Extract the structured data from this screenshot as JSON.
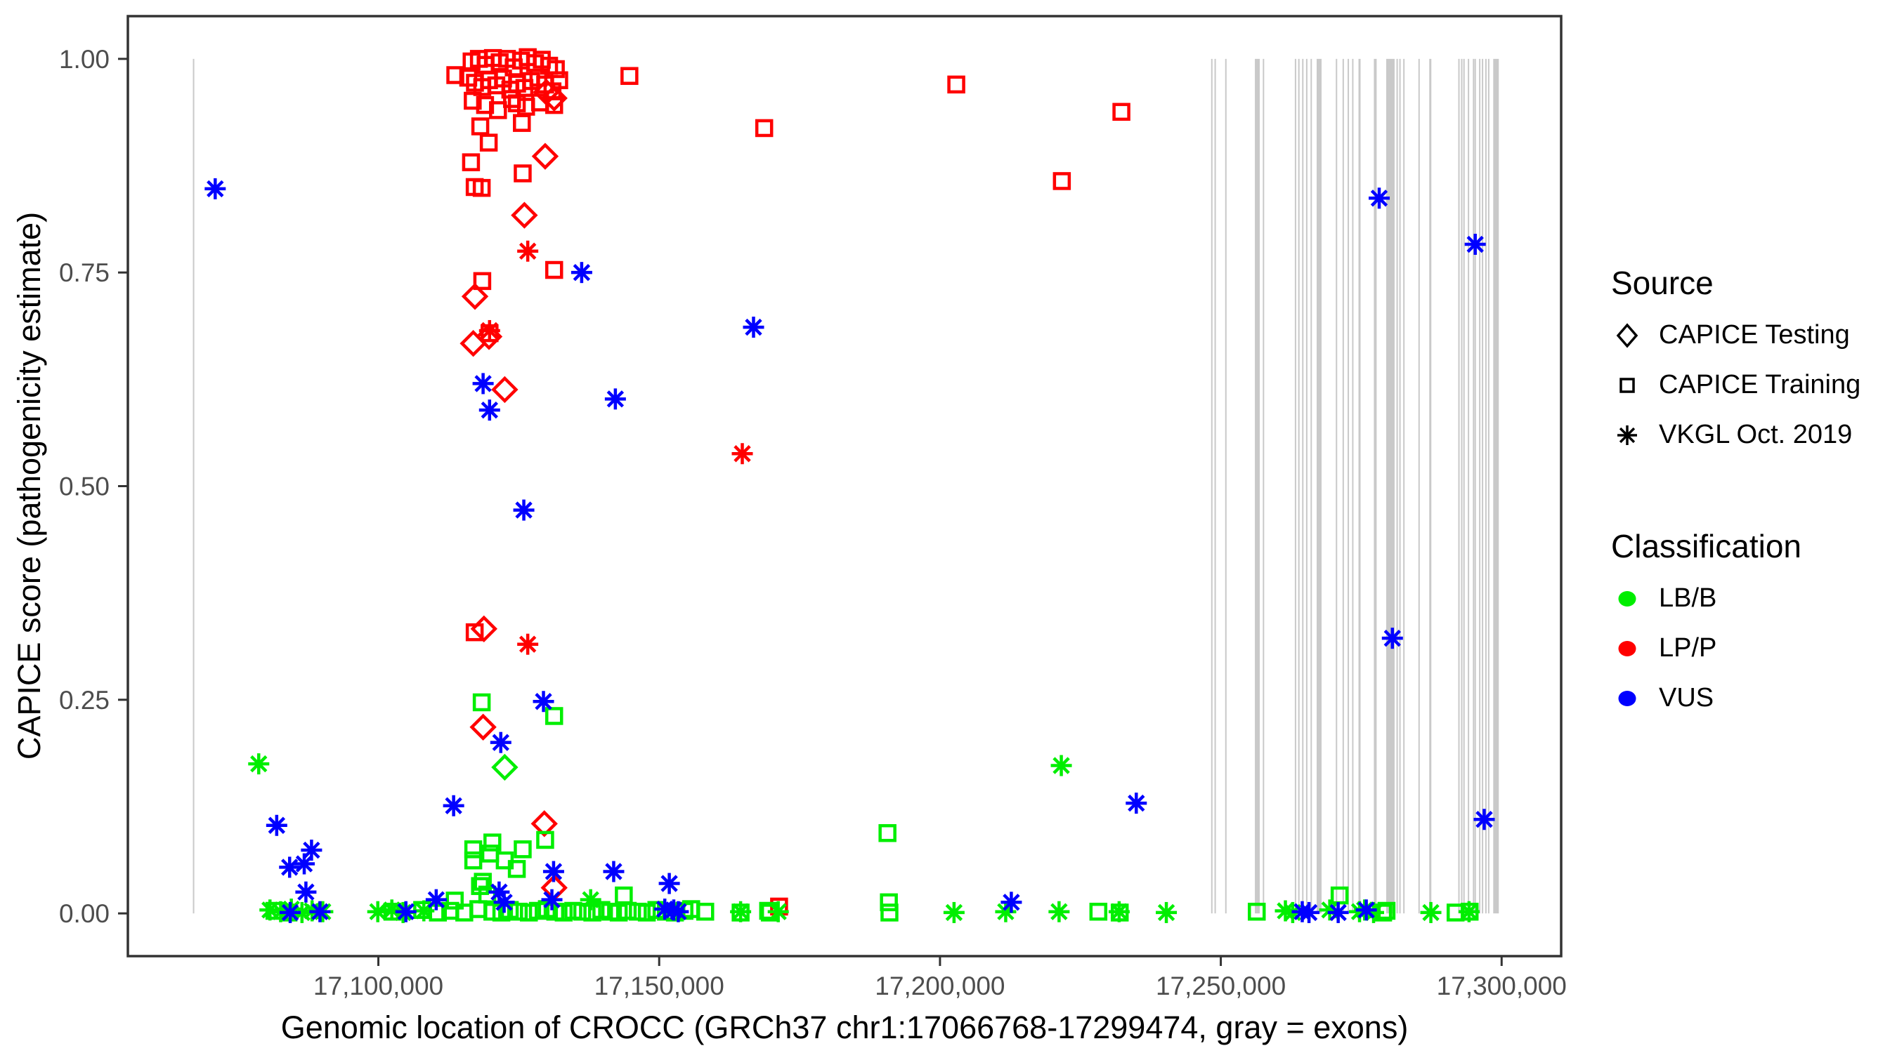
{
  "figure": {
    "background": "#ffffff",
    "panel_border_color": "#333333",
    "tick_label_color": "#4d4d4d",
    "axis_title_color": "#000000"
  },
  "chart_data": {
    "type": "scatter",
    "title": "",
    "xlabel": "Genomic location of CROCC (GRCh37 chr1:17066768-17299474, gray = exons)",
    "ylabel": "CAPICE score (pathogenicity estimate)",
    "xlim": [
      17055400,
      17310600
    ],
    "ylim": [
      -0.05,
      1.05
    ],
    "grid": false,
    "x_ticks": [
      {
        "value": 17100000,
        "label": "17,100,000"
      },
      {
        "value": 17150000,
        "label": "17,150,000"
      },
      {
        "value": 17200000,
        "label": "17,200,000"
      },
      {
        "value": 17250000,
        "label": "17,250,000"
      },
      {
        "value": 17300000,
        "label": "17,300,000"
      }
    ],
    "y_ticks": [
      {
        "value": 0.0,
        "label": "0.00"
      },
      {
        "value": 0.25,
        "label": "0.25"
      },
      {
        "value": 0.5,
        "label": "0.50"
      },
      {
        "value": 0.75,
        "label": "0.75"
      },
      {
        "value": 1.0,
        "label": "1.00"
      }
    ],
    "legend": {
      "position": "right",
      "source": {
        "title": "Source",
        "items": [
          {
            "label": "CAPICE Testing",
            "shape": "diamond",
            "icon": "diamond-icon"
          },
          {
            "label": "CAPICE Training",
            "shape": "square",
            "icon": "square-icon"
          },
          {
            "label": "VKGL Oct. 2019",
            "shape": "asterisk",
            "icon": "asterisk-icon"
          }
        ]
      },
      "classification": {
        "title": "Classification",
        "items": [
          {
            "label": "LB/B",
            "color": "#00ee00"
          },
          {
            "label": "LP/P",
            "color": "#ff0000"
          },
          {
            "label": "VUS",
            "color": "#0000ff"
          }
        ]
      }
    },
    "colors": {
      "LB/B": "#00ee00",
      "LP/P": "#ff0000",
      "VUS": "#0000ff"
    },
    "exon_color": "#c9c9c9",
    "exon_note": "gray vertical segments = exons, drawn from score 0 to 1; [position, pixel_width]",
    "exons": [
      [
        17067100,
        2
      ],
      [
        17248400,
        2
      ],
      [
        17249000,
        2
      ],
      [
        17250900,
        2
      ],
      [
        17256500,
        7
      ],
      [
        17257600,
        2
      ],
      [
        17263300,
        2
      ],
      [
        17263900,
        2
      ],
      [
        17264600,
        2
      ],
      [
        17265300,
        2
      ],
      [
        17266100,
        2
      ],
      [
        17267500,
        7
      ],
      [
        17270600,
        2
      ],
      [
        17271800,
        2
      ],
      [
        17272700,
        2
      ],
      [
        17273500,
        2
      ],
      [
        17274700,
        3
      ],
      [
        17277500,
        4
      ],
      [
        17280200,
        12
      ],
      [
        17281400,
        2
      ],
      [
        17281900,
        2
      ],
      [
        17282600,
        2
      ],
      [
        17285300,
        2
      ],
      [
        17287300,
        3
      ],
      [
        17292400,
        2
      ],
      [
        17292900,
        2
      ],
      [
        17293300,
        2
      ],
      [
        17294100,
        2
      ],
      [
        17295000,
        2
      ],
      [
        17295300,
        2
      ],
      [
        17296100,
        2
      ],
      [
        17296600,
        2
      ],
      [
        17297200,
        2
      ],
      [
        17297700,
        2
      ],
      [
        17299000,
        8
      ]
    ],
    "series": [
      {
        "source": "CAPICE Testing",
        "classification": "LP/P",
        "shape": "diamond",
        "color": "#ff0000",
        "points": [
          [
            17129900,
            0.961
          ],
          [
            17131300,
            0.954
          ],
          [
            17129700,
            0.886
          ],
          [
            17126000,
            0.817
          ],
          [
            17117200,
            0.722
          ],
          [
            17119700,
            0.675
          ],
          [
            17116900,
            0.667
          ],
          [
            17122500,
            0.613
          ],
          [
            17118800,
            0.333
          ],
          [
            17118650,
            0.218
          ],
          [
            17129550,
            0.105
          ],
          [
            17131300,
            0.03
          ]
        ]
      },
      {
        "source": "CAPICE Testing",
        "classification": "LB/B",
        "shape": "diamond",
        "color": "#00ee00",
        "points": [
          [
            17122500,
            0.171
          ]
        ]
      },
      {
        "source": "CAPICE Training",
        "classification": "LP/P",
        "shape": "square",
        "color": "#ff0000",
        "points": [
          [
            17113700,
            0.981
          ],
          [
            17116600,
            0.997
          ],
          [
            17117900,
            1.0
          ],
          [
            17119100,
            0.993
          ],
          [
            17120400,
            1.001
          ],
          [
            17121600,
            0.996
          ],
          [
            17122900,
            1.0
          ],
          [
            17124100,
            0.99
          ],
          [
            17125400,
            0.998
          ],
          [
            17126600,
            1.002
          ],
          [
            17127900,
            0.995
          ],
          [
            17129100,
            0.999
          ],
          [
            17130400,
            0.992
          ],
          [
            17131600,
            0.988
          ],
          [
            17116000,
            0.978
          ],
          [
            17117200,
            0.972
          ],
          [
            17118500,
            0.967
          ],
          [
            17119700,
            0.975
          ],
          [
            17121000,
            0.969
          ],
          [
            17122200,
            0.977
          ],
          [
            17123500,
            0.964
          ],
          [
            17124700,
            0.971
          ],
          [
            17126000,
            0.966
          ],
          [
            17127200,
            0.974
          ],
          [
            17128500,
            0.978
          ],
          [
            17129700,
            0.97
          ],
          [
            17131000,
            0.962
          ],
          [
            17132200,
            0.975
          ],
          [
            17116800,
            0.951
          ],
          [
            17119000,
            0.946
          ],
          [
            17121300,
            0.94
          ],
          [
            17123800,
            0.953
          ],
          [
            17126300,
            0.944
          ],
          [
            17128800,
            0.949
          ],
          [
            17124650,
            0.948
          ],
          [
            17131300,
            0.946
          ],
          [
            17144700,
            0.98
          ],
          [
            17118150,
            0.921
          ],
          [
            17125550,
            0.925
          ],
          [
            17119650,
            0.902
          ],
          [
            17116500,
            0.879
          ],
          [
            17125700,
            0.866
          ],
          [
            17117150,
            0.85
          ],
          [
            17118400,
            0.849
          ],
          [
            17202900,
            0.97
          ],
          [
            17232300,
            0.938
          ],
          [
            17168700,
            0.919
          ],
          [
            17221700,
            0.857
          ],
          [
            17131300,
            0.753
          ],
          [
            17118500,
            0.74
          ],
          [
            17119800,
            0.679
          ],
          [
            17117150,
            0.329
          ],
          [
            17171350,
            0.008
          ]
        ]
      },
      {
        "source": "CAPICE Training",
        "classification": "LB/B",
        "shape": "square",
        "color": "#00ee00",
        "points": [
          [
            17118400,
            0.247
          ],
          [
            17131300,
            0.231
          ],
          [
            17190650,
            0.094
          ],
          [
            17116900,
            0.075
          ],
          [
            17116900,
            0.062
          ],
          [
            17120300,
            0.083
          ],
          [
            17119900,
            0.07
          ],
          [
            17122500,
            0.062
          ],
          [
            17125700,
            0.075
          ],
          [
            17129700,
            0.086
          ],
          [
            17124650,
            0.052
          ],
          [
            17118600,
            0.037
          ],
          [
            17118100,
            0.032
          ],
          [
            17119400,
            0.022
          ],
          [
            17143700,
            0.021
          ],
          [
            17271150,
            0.021
          ],
          [
            17113600,
            0.015
          ],
          [
            17190900,
            0.013
          ],
          [
            17081500,
            0.003
          ],
          [
            17084000,
            0.001
          ],
          [
            17102500,
            0.002
          ],
          [
            17107800,
            0.004
          ],
          [
            17110600,
            0.001
          ],
          [
            17112800,
            0.003
          ],
          [
            17115300,
            0.001
          ],
          [
            17117800,
            0.005
          ],
          [
            17120300,
            0.002
          ],
          [
            17121900,
            0.001
          ],
          [
            17123400,
            0.004
          ],
          [
            17125000,
            0.002
          ],
          [
            17126800,
            0.001
          ],
          [
            17128400,
            0.003
          ],
          [
            17130000,
            0.005
          ],
          [
            17131500,
            0.002
          ],
          [
            17133000,
            0.001
          ],
          [
            17134700,
            0.003
          ],
          [
            17136300,
            0.002
          ],
          [
            17138100,
            0.001
          ],
          [
            17139700,
            0.004
          ],
          [
            17141300,
            0.002
          ],
          [
            17142800,
            0.001
          ],
          [
            17144400,
            0.003
          ],
          [
            17146200,
            0.002
          ],
          [
            17147800,
            0.001
          ],
          [
            17149500,
            0.004
          ],
          [
            17151200,
            0.002
          ],
          [
            17152800,
            0.001
          ],
          [
            17154500,
            0.003
          ],
          [
            17155700,
            0.005
          ],
          [
            17158200,
            0.002
          ],
          [
            17164500,
            0.001
          ],
          [
            17169400,
            0.003
          ],
          [
            17169700,
            0.001
          ],
          [
            17191000,
            0.001
          ],
          [
            17228200,
            0.002
          ],
          [
            17232000,
            0.001
          ],
          [
            17256400,
            0.002
          ],
          [
            17278900,
            0.001
          ],
          [
            17279500,
            0.003
          ],
          [
            17291800,
            0.001
          ],
          [
            17294300,
            0.002
          ]
        ]
      },
      {
        "source": "VKGL Oct. 2019",
        "classification": "LP/P",
        "shape": "asterisk",
        "color": "#ff0000",
        "points": [
          [
            17126600,
            0.775
          ],
          [
            17119800,
            0.682
          ],
          [
            17126600,
            0.315
          ],
          [
            17164800,
            0.538
          ]
        ]
      },
      {
        "source": "VKGL Oct. 2019",
        "classification": "LB/B",
        "shape": "asterisk",
        "color": "#00ee00",
        "points": [
          [
            17078700,
            0.175
          ],
          [
            17221600,
            0.173
          ],
          [
            17080700,
            0.004
          ],
          [
            17082600,
            0.002
          ],
          [
            17084500,
            0.005
          ],
          [
            17086400,
            0.001
          ],
          [
            17088200,
            0.003
          ],
          [
            17090100,
            0.002
          ],
          [
            17099900,
            0.002
          ],
          [
            17102400,
            0.004
          ],
          [
            17104400,
            0.001
          ],
          [
            17108100,
            0.003
          ],
          [
            17137800,
            0.016
          ],
          [
            17164500,
            0.002
          ],
          [
            17171200,
            0.002
          ],
          [
            17202500,
            0.001
          ],
          [
            17211700,
            0.002
          ],
          [
            17221200,
            0.002
          ],
          [
            17231900,
            0.002
          ],
          [
            17240300,
            0.001
          ],
          [
            17261500,
            0.003
          ],
          [
            17262800,
            0.001
          ],
          [
            17269400,
            0.004
          ],
          [
            17274700,
            0.002
          ],
          [
            17275600,
            0.004
          ],
          [
            17277200,
            0.001
          ],
          [
            17287400,
            0.001
          ],
          [
            17294200,
            0.002
          ]
        ]
      },
      {
        "source": "VKGL Oct. 2019",
        "classification": "VUS",
        "shape": "asterisk",
        "color": "#0000ff",
        "points": [
          [
            17070950,
            0.848
          ],
          [
            17278200,
            0.837
          ],
          [
            17295300,
            0.783
          ],
          [
            17136200,
            0.75
          ],
          [
            17166800,
            0.686
          ],
          [
            17142200,
            0.602
          ],
          [
            17118650,
            0.62
          ],
          [
            17119800,
            0.589
          ],
          [
            17125900,
            0.472
          ],
          [
            17280550,
            0.322
          ],
          [
            17296900,
            0.11
          ],
          [
            17129400,
            0.248
          ],
          [
            17121800,
            0.2
          ],
          [
            17113400,
            0.126
          ],
          [
            17234950,
            0.129
          ],
          [
            17081900,
            0.103
          ],
          [
            17088100,
            0.074
          ],
          [
            17086800,
            0.058
          ],
          [
            17084200,
            0.054
          ],
          [
            17087100,
            0.025
          ],
          [
            17084300,
            0.001
          ],
          [
            17089600,
            0.002
          ],
          [
            17104900,
            0.002
          ],
          [
            17110300,
            0.016
          ],
          [
            17121500,
            0.025
          ],
          [
            17122400,
            0.013
          ],
          [
            17130900,
            0.016
          ],
          [
            17131200,
            0.049
          ],
          [
            17141900,
            0.049
          ],
          [
            17151800,
            0.035
          ],
          [
            17151000,
            0.005
          ],
          [
            17152600,
            0.004
          ],
          [
            17153400,
            0.002
          ],
          [
            17212700,
            0.013
          ],
          [
            17264500,
            0.002
          ],
          [
            17265700,
            0.001
          ],
          [
            17270900,
            0.001
          ],
          [
            17275900,
            0.004
          ]
        ]
      }
    ]
  }
}
